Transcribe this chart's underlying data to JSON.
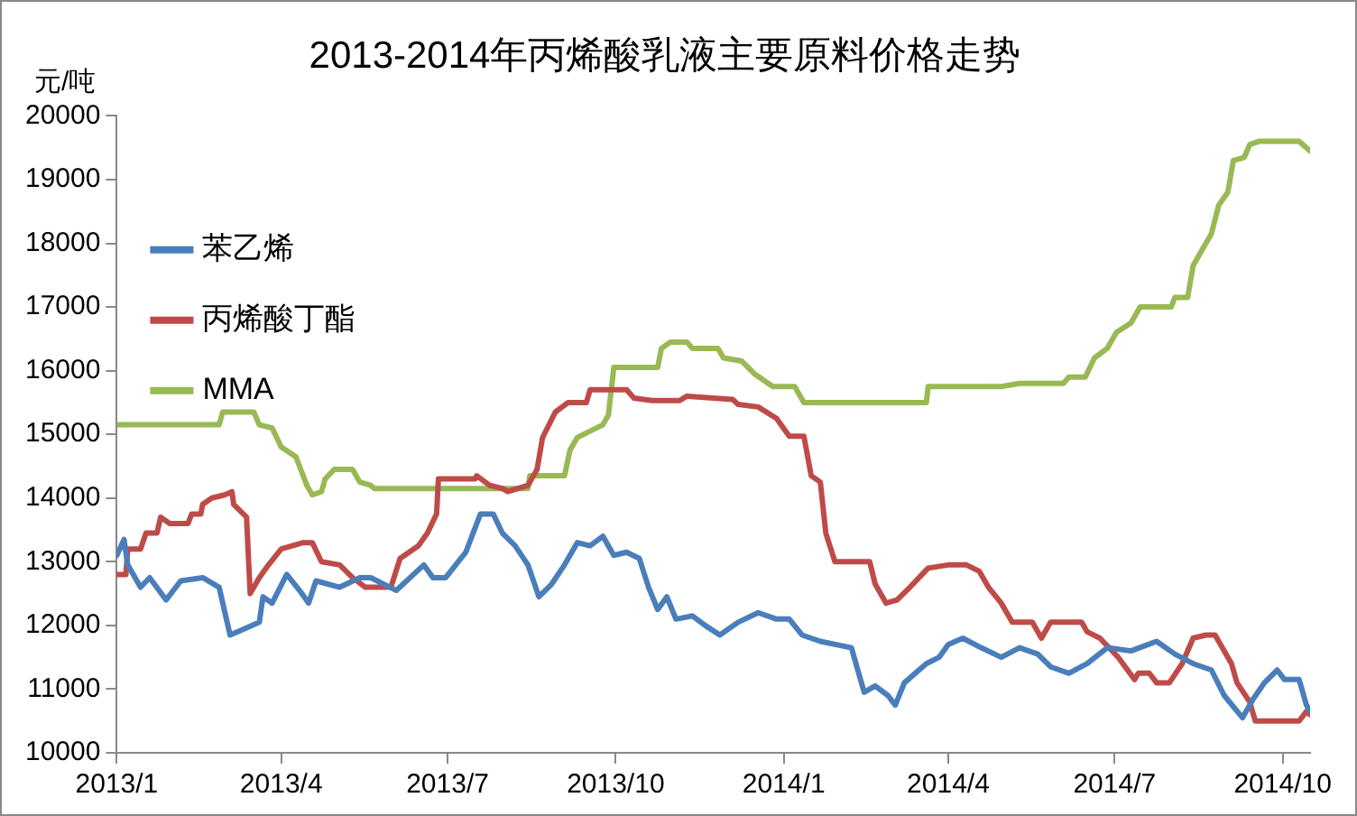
{
  "chart_data": {
    "type": "line",
    "title": "2013-2014年丙烯酸乳液主要原料价格走势",
    "ylabel": "元/吨",
    "xlim": [
      "2013-01-01",
      "2014-10-16"
    ],
    "xticks": [
      {
        "value": "2013-01-01",
        "label": "2013/1"
      },
      {
        "value": "2013-04-01",
        "label": "2013/4"
      },
      {
        "value": "2013-07-01",
        "label": "2013/7"
      },
      {
        "value": "2013-10-01",
        "label": "2013/10"
      },
      {
        "value": "2014-01-01",
        "label": "2014/1"
      },
      {
        "value": "2014-04-01",
        "label": "2014/4"
      },
      {
        "value": "2014-07-01",
        "label": "2014/7"
      },
      {
        "value": "2014-10-01",
        "label": "2014/10"
      }
    ],
    "ylim": [
      10000,
      20000
    ],
    "yticks": [
      10000,
      11000,
      12000,
      13000,
      14000,
      15000,
      16000,
      17000,
      18000,
      19000,
      20000
    ],
    "grid": false,
    "legend": "top",
    "marker": "none",
    "line_style": "solid",
    "series": [
      {
        "name": "苯乙烯",
        "color": "#4a7ebb",
        "x": [
          "2013-01-01",
          "2013-01-05",
          "2013-01-07",
          "2013-01-14",
          "2013-01-19",
          "2013-01-28",
          "2013-02-05",
          "2013-02-17",
          "2013-02-26",
          "2013-03-04",
          "2013-03-12",
          "2013-03-20",
          "2013-03-22",
          "2013-03-27",
          "2013-04-04",
          "2013-04-11",
          "2013-04-16",
          "2013-04-20",
          "2013-05-03",
          "2013-05-14",
          "2013-05-20",
          "2013-06-03",
          "2013-06-18",
          "2013-06-23",
          "2013-06-30",
          "2013-07-11",
          "2013-07-19",
          "2013-07-26",
          "2013-07-31",
          "2013-08-07",
          "2013-08-14",
          "2013-08-20",
          "2013-08-27",
          "2013-09-03",
          "2013-09-10",
          "2013-09-17",
          "2013-09-24",
          "2013-09-30",
          "2013-10-07",
          "2013-10-14",
          "2013-10-19",
          "2013-10-24",
          "2013-10-29",
          "2013-11-03",
          "2013-11-12",
          "2013-11-19",
          "2013-11-27",
          "2013-12-07",
          "2013-12-18",
          "2013-12-28",
          "2014-01-04",
          "2014-01-11",
          "2014-01-21",
          "2014-02-07",
          "2014-02-14",
          "2014-02-20",
          "2014-02-27",
          "2014-03-03",
          "2014-03-08",
          "2014-03-20",
          "2014-03-27",
          "2014-04-01",
          "2014-04-09",
          "2014-04-19",
          "2014-04-30",
          "2014-05-10",
          "2014-05-20",
          "2014-05-27",
          "2014-06-06",
          "2014-06-16",
          "2014-06-27",
          "2014-07-10",
          "2014-07-24",
          "2014-08-03",
          "2014-08-13",
          "2014-08-23",
          "2014-08-30",
          "2014-09-09",
          "2014-09-15",
          "2014-09-21",
          "2014-09-28",
          "2014-10-02",
          "2014-10-10",
          "2014-10-14",
          "2014-10-16"
        ],
        "values": [
          13100,
          13350,
          12950,
          12600,
          12750,
          12400,
          12700,
          12750,
          12600,
          11850,
          11950,
          12050,
          12450,
          12350,
          12800,
          12550,
          12350,
          12700,
          12600,
          12750,
          12750,
          12550,
          12950,
          12750,
          12750,
          13150,
          13750,
          13750,
          13450,
          13250,
          12950,
          12450,
          12650,
          12950,
          13300,
          13250,
          13400,
          13100,
          13150,
          13050,
          12600,
          12250,
          12450,
          12100,
          12150,
          12000,
          11850,
          12050,
          12200,
          12100,
          12100,
          11850,
          11750,
          11650,
          10950,
          11050,
          10900,
          10750,
          11100,
          11400,
          11500,
          11700,
          11800,
          11650,
          11500,
          11650,
          11550,
          11350,
          11250,
          11400,
          11650,
          11600,
          11750,
          11550,
          11400,
          11300,
          10900,
          10550,
          10850,
          11100,
          11300,
          11150,
          11150,
          10750,
          10650
        ]
      },
      {
        "name": "丙烯酸丁酯",
        "color": "#be4b48",
        "x": [
          "2013-01-01",
          "2013-01-06",
          "2013-01-07",
          "2013-01-14",
          "2013-01-17",
          "2013-01-23",
          "2013-01-25",
          "2013-01-30",
          "2013-02-09",
          "2013-02-11",
          "2013-02-16",
          "2013-02-17",
          "2013-02-22",
          "2013-03-01",
          "2013-03-05",
          "2013-03-06",
          "2013-03-13",
          "2013-03-15",
          "2013-03-20",
          "2013-03-25",
          "2013-04-01",
          "2013-04-13",
          "2013-04-18",
          "2013-04-23",
          "2013-05-03",
          "2013-05-10",
          "2013-05-17",
          "2013-05-31",
          "2013-06-05",
          "2013-06-15",
          "2013-06-20",
          "2013-06-25",
          "2013-06-26",
          "2013-07-16",
          "2013-07-17",
          "2013-07-24",
          "2013-07-31",
          "2013-08-03",
          "2013-08-14",
          "2013-08-19",
          "2013-08-22",
          "2013-08-29",
          "2013-09-05",
          "2013-09-15",
          "2013-09-17",
          "2013-10-07",
          "2013-10-11",
          "2013-10-21",
          "2013-11-05",
          "2013-11-09",
          "2013-12-04",
          "2013-12-07",
          "2013-12-18",
          "2013-12-28",
          "2014-01-04",
          "2014-01-12",
          "2014-01-16",
          "2014-01-21",
          "2014-01-24",
          "2014-01-29",
          "2014-02-17",
          "2014-02-20",
          "2014-02-26",
          "2014-03-04",
          "2014-03-11",
          "2014-03-21",
          "2014-04-01",
          "2014-04-11",
          "2014-04-18",
          "2014-04-23",
          "2014-04-30",
          "2014-05-06",
          "2014-05-17",
          "2014-05-22",
          "2014-05-27",
          "2014-06-13",
          "2014-06-16",
          "2014-06-23",
          "2014-07-03",
          "2014-07-12",
          "2014-07-14",
          "2014-07-20",
          "2014-07-24",
          "2014-07-31",
          "2014-08-07",
          "2014-08-13",
          "2014-08-20",
          "2014-08-25",
          "2014-09-03",
          "2014-09-06",
          "2014-09-13",
          "2014-09-16",
          "2014-10-10",
          "2014-10-14",
          "2014-10-16"
        ],
        "values": [
          12800,
          12800,
          13200,
          13200,
          13450,
          13450,
          13700,
          13600,
          13600,
          13750,
          13750,
          13900,
          14000,
          14050,
          14100,
          13900,
          13700,
          12500,
          12750,
          12950,
          13200,
          13300,
          13300,
          13000,
          12950,
          12750,
          12600,
          12600,
          13050,
          13250,
          13450,
          13750,
          14300,
          14300,
          14350,
          14200,
          14150,
          14100,
          14200,
          14450,
          14950,
          15350,
          15500,
          15500,
          15700,
          15700,
          15570,
          15530,
          15530,
          15600,
          15550,
          15470,
          15430,
          15250,
          14970,
          14970,
          14350,
          14250,
          13450,
          13000,
          13000,
          12650,
          12350,
          12400,
          12600,
          12900,
          12950,
          12950,
          12850,
          12600,
          12350,
          12050,
          12050,
          11800,
          12050,
          12050,
          11900,
          11800,
          11500,
          11150,
          11250,
          11250,
          11100,
          11100,
          11400,
          11800,
          11850,
          11850,
          11400,
          11100,
          10800,
          10500,
          10500,
          10650,
          10600
        ]
      },
      {
        "name": "MMA",
        "color": "#98b954",
        "x": [
          "2013-01-01",
          "2013-02-26",
          "2013-02-28",
          "2013-03-17",
          "2013-03-20",
          "2013-03-27",
          "2013-04-01",
          "2013-04-09",
          "2013-04-15",
          "2013-04-18",
          "2013-04-23",
          "2013-04-25",
          "2013-04-30",
          "2013-05-10",
          "2013-05-14",
          "2013-05-20",
          "2013-05-22",
          "2013-08-14",
          "2013-08-15",
          "2013-09-03",
          "2013-09-06",
          "2013-09-10",
          "2013-09-17",
          "2013-09-24",
          "2013-09-27",
          "2013-09-30",
          "2013-10-24",
          "2013-10-26",
          "2013-10-31",
          "2013-11-09",
          "2013-11-12",
          "2013-11-26",
          "2013-11-29",
          "2013-12-09",
          "2013-12-16",
          "2013-12-26",
          "2014-01-07",
          "2014-01-12",
          "2014-03-20",
          "2014-03-21",
          "2014-04-30",
          "2014-05-10",
          "2014-06-03",
          "2014-06-06",
          "2014-06-15",
          "2014-06-20",
          "2014-06-27",
          "2014-07-02",
          "2014-07-10",
          "2014-07-15",
          "2014-08-01",
          "2014-08-03",
          "2014-08-10",
          "2014-08-13",
          "2014-08-18",
          "2014-08-23",
          "2014-08-27",
          "2014-09-01",
          "2014-09-04",
          "2014-09-10",
          "2014-09-13",
          "2014-09-18",
          "2014-10-10",
          "2014-10-16"
        ],
        "values": [
          15150,
          15150,
          15350,
          15350,
          15150,
          15100,
          14800,
          14650,
          14200,
          14050,
          14100,
          14300,
          14450,
          14450,
          14250,
          14200,
          14150,
          14150,
          14350,
          14350,
          14750,
          14950,
          15050,
          15150,
          15300,
          16050,
          16050,
          16350,
          16450,
          16450,
          16350,
          16350,
          16200,
          16150,
          15950,
          15750,
          15750,
          15500,
          15500,
          15750,
          15750,
          15800,
          15800,
          15900,
          15900,
          16200,
          16350,
          16600,
          16750,
          17000,
          17000,
          17150,
          17150,
          17650,
          17900,
          18150,
          18600,
          18800,
          19300,
          19350,
          19550,
          19600,
          19600,
          19450
        ]
      }
    ]
  }
}
